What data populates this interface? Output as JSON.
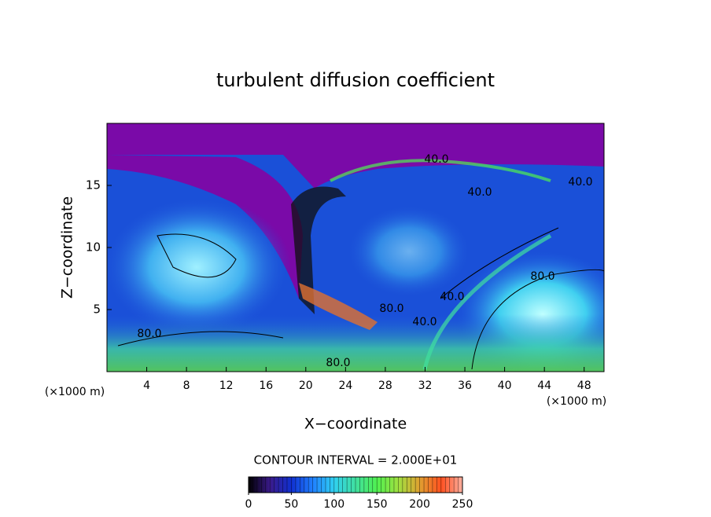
{
  "chart_data": {
    "type": "contour",
    "title": "turbulent diffusion coefficient",
    "x_label": "X−coordinate",
    "y_label": "Z−coordinate",
    "x_unit_label": "(×1000 m)",
    "y_unit_label": "(×1000 m)",
    "xlim": [
      0,
      50
    ],
    "ylim": [
      0,
      20
    ],
    "xticks": [
      4,
      8,
      12,
      16,
      20,
      24,
      28,
      32,
      36,
      40,
      44,
      48
    ],
    "yticks": [
      5,
      10,
      15
    ],
    "contour_interval_label": "CONTOUR INTERVAL = 2.000E+01",
    "contour_labels": [
      "80.0",
      "80.0",
      "80.0",
      "40.0",
      "40.0",
      "40.0",
      "40.0",
      "80.0",
      "40.0"
    ],
    "colorbar": {
      "clim": [
        0,
        250
      ],
      "ticks": [
        0,
        50,
        100,
        150,
        200,
        250
      ],
      "colors": [
        "#000000",
        "#3a1a8a",
        "#1030d0",
        "#2080ff",
        "#30d0f0",
        "#40e0a0",
        "#50f050",
        "#a0e040",
        "#e0a030",
        "#ff5020",
        "#ffb0a0"
      ]
    }
  }
}
